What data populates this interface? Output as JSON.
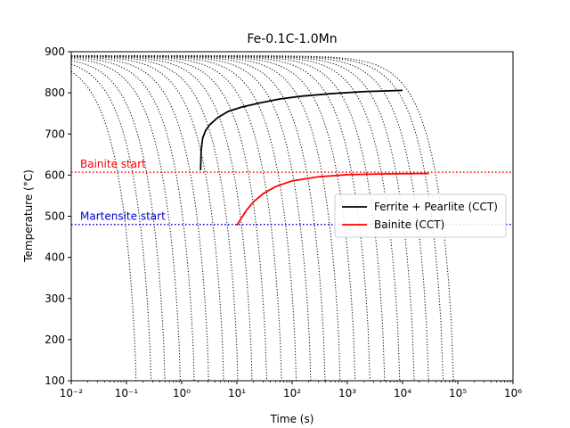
{
  "chart_data": {
    "type": "line",
    "title": "Fe-0.1C-1.0Mn",
    "xlabel": "Time (s)",
    "ylabel": "Temperature (°C)",
    "xscale": "log",
    "xlim": [
      0.01,
      1000000
    ],
    "ylim": [
      100,
      900
    ],
    "xticks": [
      0.01,
      0.1,
      1,
      10,
      100,
      1000,
      10000,
      100000,
      1000000
    ],
    "yticks": [
      100,
      200,
      300,
      400,
      500,
      600,
      700,
      800,
      900
    ],
    "grid": false,
    "series": [
      {
        "name": "Ferrite + Pearlite (CCT)",
        "color": "#000000",
        "points": [
          [
            2.2,
            612
          ],
          [
            2.25,
            660
          ],
          [
            2.4,
            690
          ],
          [
            2.7,
            708
          ],
          [
            3.2,
            722
          ],
          [
            4.5,
            740
          ],
          [
            7,
            755
          ],
          [
            12,
            765
          ],
          [
            25,
            775
          ],
          [
            60,
            785
          ],
          [
            150,
            792
          ],
          [
            500,
            798
          ],
          [
            2000,
            803
          ],
          [
            10000,
            806
          ]
        ]
      },
      {
        "name": "Bainite (CCT)",
        "color": "#ff0000",
        "points": [
          [
            10,
            478
          ],
          [
            12,
            495
          ],
          [
            15,
            515
          ],
          [
            20,
            535
          ],
          [
            30,
            555
          ],
          [
            50,
            572
          ],
          [
            100,
            586
          ],
          [
            300,
            596
          ],
          [
            1000,
            601
          ],
          [
            5000,
            603
          ],
          [
            30000,
            604
          ]
        ]
      }
    ],
    "reference_lines": [
      {
        "label": "Bainite start",
        "value": 607,
        "color": "#ff0000",
        "style": "dotted"
      },
      {
        "label": "Martensite start",
        "value": 480,
        "color": "#0000cc",
        "style": "dotted"
      }
    ],
    "cooling_curves": {
      "color": "#000000",
      "style": "dotted",
      "start_temperature": 890,
      "end_times": [
        0.15,
        0.28,
        0.5,
        0.95,
        1.7,
        3.1,
        5.8,
        10.5,
        19,
        35,
        65,
        120,
        220,
        400,
        750,
        1400,
        2600,
        4800,
        9000,
        16500,
        30000,
        55000,
        85000
      ]
    },
    "legend": {
      "position": "center-right"
    }
  }
}
